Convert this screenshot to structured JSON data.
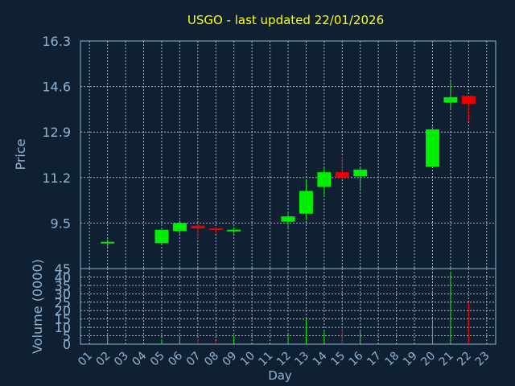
{
  "chart_data": {
    "type": "candlestick",
    "title": "USGO - last updated 22/01/2026",
    "xlabel": "Day",
    "ylabel_price": "Price",
    "ylabel_volume": "Volume (0000)",
    "x_ticks": [
      "01",
      "02",
      "03",
      "04",
      "05",
      "06",
      "07",
      "08",
      "09",
      "10",
      "11",
      "12",
      "13",
      "14",
      "15",
      "16",
      "17",
      "18",
      "19",
      "20",
      "21",
      "22",
      "23"
    ],
    "price_ticks": [
      "9.5",
      "11.2",
      "12.9",
      "14.6",
      "16.3"
    ],
    "volume_ticks": [
      "0",
      "5",
      "10",
      "15",
      "20",
      "25",
      "30",
      "35",
      "40",
      "45"
    ],
    "price_range": [
      7.8,
      16.3
    ],
    "volume_range": [
      0,
      45
    ],
    "grid": true,
    "colors": {
      "background": "#0f2033",
      "up": "#00ee00",
      "down": "#ee0000",
      "title": "#ffff00",
      "text": "#8fb4d6"
    },
    "candles": [
      {
        "day": 2,
        "open": 8.8,
        "high": 8.9,
        "low": 8.6,
        "close": 8.8,
        "volume": 4
      },
      {
        "day": 5,
        "open": 8.75,
        "high": 9.25,
        "low": 8.7,
        "close": 9.25,
        "volume": 3
      },
      {
        "day": 6,
        "open": 9.2,
        "high": 9.6,
        "low": 9.1,
        "close": 9.5,
        "volume": 5
      },
      {
        "day": 7,
        "open": 9.4,
        "high": 9.45,
        "low": 8.9,
        "close": 9.3,
        "volume": 3
      },
      {
        "day": 8,
        "open": 9.3,
        "high": 9.35,
        "low": 9.1,
        "close": 9.25,
        "volume": 2
      },
      {
        "day": 9,
        "open": 9.2,
        "high": 9.35,
        "low": 9.1,
        "close": 9.25,
        "volume": 5
      },
      {
        "day": 12,
        "open": 9.55,
        "high": 9.9,
        "low": 9.3,
        "close": 9.75,
        "volume": 6
      },
      {
        "day": 13,
        "open": 9.85,
        "high": 11.1,
        "low": 9.6,
        "close": 10.7,
        "volume": 15
      },
      {
        "day": 14,
        "open": 10.85,
        "high": 11.6,
        "low": 10.5,
        "close": 11.4,
        "volume": 8
      },
      {
        "day": 15,
        "open": 11.4,
        "high": 12.0,
        "low": 11.2,
        "close": 11.2,
        "volume": 10
      },
      {
        "day": 16,
        "open": 11.25,
        "high": 11.6,
        "low": 10.7,
        "close": 11.5,
        "volume": 8
      },
      {
        "day": 20,
        "open": 11.6,
        "high": 13.1,
        "low": 11.6,
        "close": 13.0,
        "volume": 14
      },
      {
        "day": 21,
        "open": 14.0,
        "high": 14.8,
        "low": 13.75,
        "close": 14.2,
        "volume": 43
      },
      {
        "day": 22,
        "open": 14.25,
        "high": 14.25,
        "low": 13.3,
        "close": 13.95,
        "volume": 25
      }
    ]
  }
}
